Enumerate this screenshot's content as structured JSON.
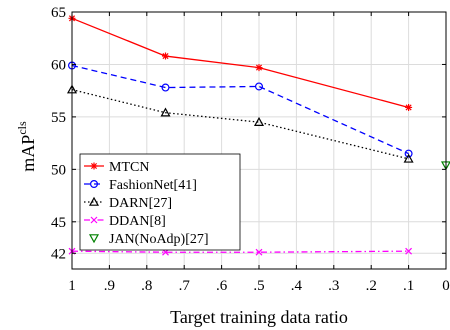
{
  "chart_data": {
    "type": "line",
    "title": "",
    "xlabel": "Target training data ratio",
    "ylabel": "mAP",
    "ylabel_sup": "cls",
    "x_ticks": [
      {
        "value": 1.0,
        "label": "1"
      },
      {
        "value": 0.9,
        "label": ".9"
      },
      {
        "value": 0.8,
        "label": ".8"
      },
      {
        "value": 0.7,
        "label": ".7"
      },
      {
        "value": 0.6,
        "label": ".6"
      },
      {
        "value": 0.5,
        "label": ".5"
      },
      {
        "value": 0.4,
        "label": ".4"
      },
      {
        "value": 0.3,
        "label": ".3"
      },
      {
        "value": 0.2,
        "label": ".2"
      },
      {
        "value": 0.1,
        "label": ".1"
      },
      {
        "value": 0.0,
        "label": "0"
      }
    ],
    "x_reversed": true,
    "xlim": [
      1.0,
      0.0
    ],
    "y_ticks": [
      {
        "value": 42,
        "label": "42"
      },
      {
        "value": 45,
        "label": "45"
      },
      {
        "value": 50,
        "label": "50"
      },
      {
        "value": 55,
        "label": "55"
      },
      {
        "value": 60,
        "label": "60"
      },
      {
        "value": 65,
        "label": "65"
      }
    ],
    "ylim": [
      40.5,
      65
    ],
    "grid": true,
    "legend_position": "bottom-left",
    "series": [
      {
        "name": "MTCN",
        "color": "#ff0000",
        "dash": "solid",
        "marker": "star",
        "x": [
          1.0,
          0.75,
          0.5,
          0.1
        ],
        "y": [
          64.4,
          60.8,
          59.7,
          55.9
        ]
      },
      {
        "name": "FashionNet[41]",
        "color": "#0000ff",
        "dash": "dashed",
        "marker": "circle",
        "x": [
          1.0,
          0.75,
          0.5,
          0.1
        ],
        "y": [
          59.9,
          57.8,
          57.9,
          51.5
        ]
      },
      {
        "name": "DARN[27]",
        "color": "#000000",
        "dash": "dotted",
        "marker": "triangle-up",
        "x": [
          1.0,
          0.75,
          0.5,
          0.1
        ],
        "y": [
          57.6,
          55.4,
          54.5,
          51.0
        ]
      },
      {
        "name": "DDAN[8]",
        "color": "#ff00ff",
        "dash": "dashdot",
        "marker": "x",
        "x": [
          1.0,
          0.75,
          0.5,
          0.1
        ],
        "y": [
          42.2,
          42.1,
          42.1,
          42.2
        ]
      },
      {
        "name": "JAN(NoAdp)[27]",
        "color": "#008000",
        "dash": "none",
        "marker": "triangle-down",
        "x": [
          0.0
        ],
        "y": [
          50.4
        ]
      }
    ]
  }
}
